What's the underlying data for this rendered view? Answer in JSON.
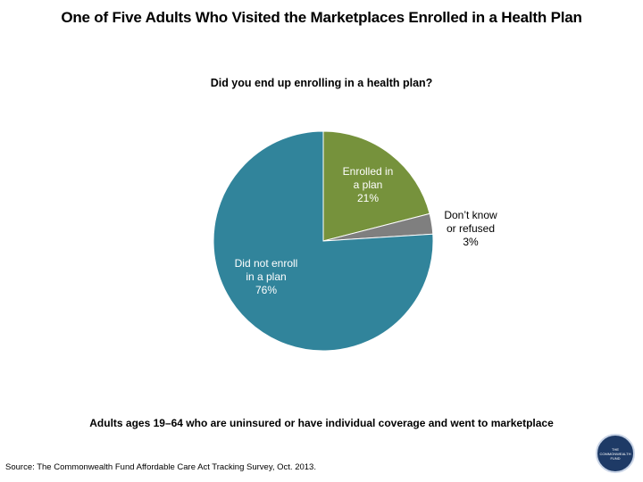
{
  "chart_data": {
    "type": "pie",
    "title": "One of Five Adults Who Visited the Marketplaces Enrolled in a Health Plan",
    "subtitle": "Did you end up enrolling in a health plan?",
    "slices": [
      {
        "label": "Enrolled in a plan",
        "value": 21,
        "display": "21%",
        "color": "#76923c"
      },
      {
        "label": "Don't know or refused",
        "value": 3,
        "display": "3%",
        "color": "#7f7f7f"
      },
      {
        "label": "Did not enroll in a plan",
        "value": 76,
        "display": "76%",
        "color": "#31849b"
      }
    ],
    "footnote": "Adults ages 19–64 who are uninsured or have individual coverage and went to marketplace",
    "source": "Source: The Commonwealth Fund Affordable Care Act Tracking Survey, Oct. 2013."
  },
  "labels": {
    "enrolled": "Enrolled in\na plan\n21%",
    "dontknow": "Don’t know\nor refused\n3%",
    "notenrolled": "Did not enroll\nin a plan\n76%"
  },
  "logo": {
    "text": "THE COMMONWEALTH FUND",
    "color": "#1e3a66"
  }
}
